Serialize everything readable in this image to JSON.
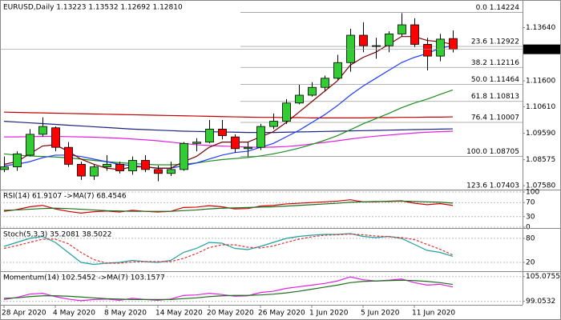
{
  "chart_data": [
    {
      "type": "candlestick",
      "title": "EURUSD,Daily  1.13223 1.13532 1.12692 1.12810",
      "categories": [
        "28 Apr 2020",
        null,
        null,
        null,
        "4 May 2020",
        null,
        null,
        null,
        "8 May 2020",
        null,
        null,
        null,
        "14 May 2020",
        null,
        null,
        null,
        "20 May 2020",
        null,
        null,
        null,
        "26 May 2020",
        null,
        null,
        null,
        "1 Jun 2020",
        null,
        null,
        null,
        "5 Jun 2020",
        null,
        null,
        null,
        "11 Jun 2020",
        null,
        null,
        null
      ],
      "open": [
        1.082,
        1.083,
        1.0875,
        1.0955,
        1.098,
        1.0905,
        1.084,
        1.0795,
        1.083,
        1.084,
        1.0815,
        1.0855,
        1.082,
        1.0805,
        1.082,
        1.092,
        1.0925,
        1.0975,
        1.0945,
        1.09,
        1.0905,
        1.0985,
        1.1005,
        1.1075,
        1.1105,
        1.1135,
        1.117,
        1.123,
        1.1335,
        1.1295,
        1.1295,
        1.134,
        1.1375,
        1.13,
        1.1255,
        1.13223
      ],
      "high": [
        1.087,
        1.089,
        1.0975,
        1.102,
        1.0985,
        1.0925,
        1.085,
        1.084,
        1.0875,
        1.085,
        1.087,
        1.0875,
        1.0835,
        1.085,
        1.0925,
        1.094,
        1.101,
        1.101,
        1.0955,
        1.0925,
        1.0995,
        1.1035,
        1.109,
        1.1145,
        1.1155,
        1.118,
        1.126,
        1.136,
        1.1385,
        1.1325,
        1.135,
        1.142,
        1.14,
        1.1325,
        1.134,
        1.13532
      ],
      "low": [
        1.081,
        1.0815,
        1.087,
        1.0945,
        1.089,
        1.083,
        1.078,
        1.078,
        1.0815,
        1.0805,
        1.08,
        1.081,
        1.0775,
        1.0795,
        1.0815,
        1.089,
        1.092,
        1.0935,
        1.0885,
        1.087,
        1.0895,
        1.0975,
        1.0995,
        1.107,
        1.11,
        1.112,
        1.1165,
        1.1195,
        1.127,
        1.1245,
        1.127,
        1.133,
        1.129,
        1.12,
        1.1235,
        1.12692
      ],
      "close": [
        1.083,
        1.088,
        1.0955,
        1.0985,
        1.0905,
        1.084,
        1.0795,
        1.083,
        1.084,
        1.0815,
        1.0855,
        1.082,
        1.0805,
        1.082,
        1.092,
        1.0925,
        1.0975,
        1.095,
        1.09,
        1.0905,
        1.0985,
        1.1005,
        1.1075,
        1.1105,
        1.1135,
        1.117,
        1.123,
        1.1335,
        1.1295,
        1.1295,
        1.134,
        1.1375,
        1.13,
        1.1255,
        1.132,
        1.1281
      ],
      "up_color": "#32cd32",
      "down_color": "#ff0000",
      "series": [
        {
          "color": "#c00000",
          "values": [
            1.104,
            1.1039,
            1.1038,
            1.1037,
            1.1036,
            1.1035,
            1.1034,
            1.1033,
            1.1032,
            1.1031,
            1.103,
            1.1029,
            1.1028,
            1.1027,
            1.1026,
            1.1025,
            1.1024,
            1.1023,
            1.1022,
            1.1021,
            1.102,
            1.102,
            1.1019,
            1.1019,
            1.1018,
            1.1018,
            1.1018,
            1.1018,
            1.1018,
            1.1019,
            1.1019,
            1.102,
            1.102,
            1.1021,
            1.1021,
            1.1022
          ]
        },
        {
          "color": "#1a237e",
          "values": [
            1.1005,
            1.1002,
            1.0999,
            1.0996,
            1.0993,
            1.099,
            1.0987,
            1.0984,
            1.0981,
            1.0978,
            1.0975,
            1.0973,
            1.0971,
            1.0969,
            1.0967,
            1.0966,
            1.0965,
            1.0964,
            1.0963,
            1.0962,
            1.0962,
            1.0962,
            1.0963,
            1.0964,
            1.0965,
            1.0966,
            1.0967,
            1.0968,
            1.0969,
            1.097,
            1.0971,
            1.0972,
            1.0973,
            1.0974,
            1.0975,
            1.0976
          ]
        },
        {
          "color": "#e020e0",
          "values": [
            1.0945,
            1.0945,
            1.0946,
            1.0947,
            1.0947,
            1.0946,
            1.0945,
            1.0944,
            1.0942,
            1.094,
            1.0937,
            1.0934,
            1.093,
            1.0925,
            1.092,
            1.0915,
            1.0912,
            1.091,
            1.0908,
            1.0906,
            1.0905,
            1.0906,
            1.0908,
            1.0912,
            1.0918,
            1.0924,
            1.093,
            1.0937,
            1.0943,
            1.0948,
            1.0952,
            1.0956,
            1.096,
            1.0963,
            1.0965,
            1.0967
          ]
        },
        {
          "color": "#1e8c1e",
          "values": [
            1.088,
            1.0875,
            1.0872,
            1.087,
            1.0868,
            1.0865,
            1.086,
            1.0855,
            1.085,
            1.0846,
            1.0843,
            1.084,
            1.0838,
            1.0838,
            1.084,
            1.0845,
            1.0852,
            1.0858,
            1.0862,
            1.0866,
            1.0872,
            1.088,
            1.089,
            1.0902,
            1.0916,
            1.0932,
            1.095,
            1.0972,
            1.0995,
            1.1015,
            1.1035,
            1.1057,
            1.1075,
            1.109,
            1.1108,
            1.1125
          ]
        },
        {
          "color": "#1e3cff",
          "values": [
            1.0835,
            1.084,
            1.085,
            1.0865,
            1.0875,
            1.0875,
            1.087,
            1.086,
            1.085,
            1.084,
            1.0835,
            1.083,
            1.0825,
            1.0825,
            1.0835,
            1.0845,
            1.086,
            1.0875,
            1.0885,
            1.089,
            1.0905,
            1.092,
            1.0945,
            1.097,
            1.1,
            1.103,
            1.1065,
            1.1105,
            1.114,
            1.117,
            1.12,
            1.123,
            1.125,
            1.1265,
            1.1285,
            1.1295
          ]
        },
        {
          "color": "#7b0000",
          "values": [
            1.084,
            1.085,
            1.088,
            1.091,
            1.0915,
            1.089,
            1.086,
            1.084,
            1.0825,
            1.082,
            1.083,
            1.083,
            1.0825,
            1.0825,
            1.085,
            1.087,
            1.0905,
            1.0925,
            1.0925,
            1.0925,
            1.0945,
            1.0965,
            1.1,
            1.104,
            1.108,
            1.112,
            1.116,
            1.122,
            1.125,
            1.127,
            1.13,
            1.133,
            1.133,
            1.1315,
            1.131,
            1.13
          ]
        }
      ],
      "fib_levels": [
        {
          "value": 1.14224,
          "label": "0.0 1.14224"
        },
        {
          "value": 1.12922,
          "label": "23.6 1.12922"
        },
        {
          "value": 1.12116,
          "label": "38.2 1.12116"
        },
        {
          "value": 1.11464,
          "label": "50.0 1.11464"
        },
        {
          "value": 1.10813,
          "label": "61.8 1.10813"
        },
        {
          "value": 1.10007,
          "label": "76.4 1.10007"
        },
        {
          "value": 1.08705,
          "label": "100.0 1.08705"
        },
        {
          "value": 1.07403,
          "label": "123.6 1.07403"
        }
      ],
      "price_marker": {
        "value": 1.1281,
        "label": "1.12810"
      },
      "ylim": [
        1.0746,
        1.1464
      ],
      "yticks": [
        {
          "value": 1.1364,
          "label": "1.13640"
        },
        {
          "value": 1.116,
          "label": "1.11600"
        },
        {
          "value": 1.1061,
          "label": "1.10610"
        },
        {
          "value": 1.0959,
          "label": "1.09590"
        },
        {
          "value": 1.08575,
          "label": "1.08575"
        },
        {
          "value": 1.0758,
          "label": "1.07580"
        }
      ]
    },
    {
      "type": "line",
      "title": "RSI(14) 61.9107  ->MA(7) 68.4546",
      "series": [
        {
          "color": "#d00000",
          "values": [
            45,
            50,
            58,
            62,
            52,
            45,
            40,
            44,
            46,
            43,
            48,
            45,
            43,
            45,
            56,
            57,
            61,
            58,
            52,
            53,
            60,
            62,
            66,
            68,
            70,
            72,
            74,
            78,
            72,
            72,
            74,
            75,
            68,
            64,
            67,
            61.9107
          ]
        },
        {
          "color": "#1e6e1e",
          "values": [
            48,
            49,
            51,
            53,
            54,
            53,
            51,
            49,
            47,
            46,
            45,
            45,
            45,
            45,
            47,
            49,
            52,
            54,
            55,
            56,
            57,
            58,
            60,
            62,
            64,
            66,
            68,
            71,
            72,
            73,
            73,
            74,
            73,
            72,
            71,
            68.4546
          ]
        }
      ],
      "ylim": [
        0,
        100
      ],
      "yticks": [
        100,
        70,
        30,
        0
      ]
    },
    {
      "type": "line",
      "title": "Stoch(5,3,3) 35.2081 38.5022",
      "series": [
        {
          "color": "#20a0a0",
          "values": [
            60,
            70,
            80,
            85,
            70,
            45,
            20,
            15,
            18,
            20,
            25,
            22,
            20,
            25,
            45,
            55,
            70,
            68,
            55,
            52,
            60,
            70,
            80,
            85,
            88,
            90,
            90,
            92,
            85,
            82,
            85,
            80,
            65,
            50,
            45,
            35.2081
          ]
        },
        {
          "color": "#e03030",
          "dash": true,
          "values": [
            55,
            62,
            70,
            78,
            78,
            67,
            45,
            27,
            18,
            18,
            21,
            22,
            22,
            22,
            30,
            42,
            57,
            64,
            64,
            58,
            56,
            61,
            70,
            78,
            84,
            88,
            89,
            91,
            89,
            86,
            84,
            82,
            77,
            65,
            53,
            38.5022
          ]
        }
      ],
      "ylim": [
        0,
        100
      ],
      "yticks": [
        80,
        20
      ]
    },
    {
      "type": "line",
      "title": "Momentum(14) 102.5452  ->MA(7) 103.1577",
      "series": [
        {
          "color": "#e020e0",
          "values": [
            99.5,
            100,
            100.8,
            101,
            100.2,
            99.6,
            99.2,
            99.5,
            99.6,
            99.3,
            99.8,
            99.5,
            99.3,
            99.6,
            100.5,
            100.6,
            101,
            100.7,
            100.3,
            100.4,
            101.2,
            101.5,
            102.2,
            102.6,
            103,
            103.4,
            104,
            105,
            104.3,
            104,
            104.2,
            104.5,
            103.6,
            103,
            103.2,
            102.5452
          ]
        },
        {
          "color": "#1e6e1e",
          "values": [
            99.8,
            99.9,
            100.2,
            100.4,
            100.4,
            100.3,
            100.1,
            99.9,
            99.7,
            99.6,
            99.5,
            99.5,
            99.5,
            99.5,
            99.7,
            99.9,
            100.2,
            100.4,
            100.5,
            100.5,
            100.6,
            100.8,
            101.1,
            101.5,
            102,
            102.5,
            103,
            103.6,
            103.9,
            104,
            104.1,
            104.2,
            104.1,
            103.9,
            103.6,
            103.1577
          ]
        }
      ],
      "ylim": [
        98.4,
        105.8
      ],
      "yticks": [
        105.0755,
        99.0532
      ]
    }
  ]
}
